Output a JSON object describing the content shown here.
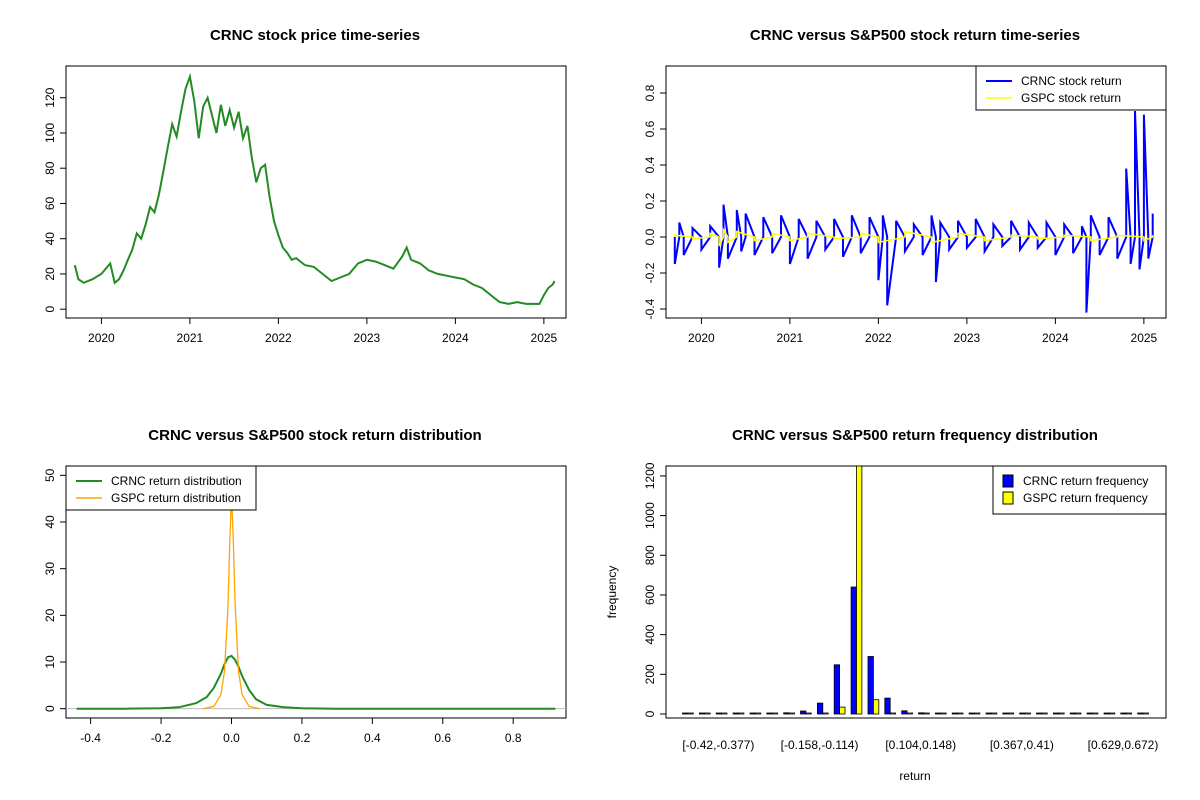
{
  "chart_data": [
    {
      "type": "line",
      "title": "CRNC stock price time-series",
      "xlabel": "",
      "ylabel": "",
      "xlim": [
        2019.6,
        2025.25
      ],
      "ylim": [
        -5,
        138
      ],
      "xticks": [
        2020,
        2021,
        2022,
        2023,
        2024,
        2025
      ],
      "yticks": [
        0,
        20,
        40,
        60,
        80,
        100,
        120
      ],
      "series": [
        {
          "name": "CRNC price",
          "color": "#228B22",
          "x": [
            2019.7,
            2019.74,
            2019.8,
            2019.9,
            2020.0,
            2020.1,
            2020.15,
            2020.2,
            2020.25,
            2020.3,
            2020.35,
            2020.4,
            2020.45,
            2020.5,
            2020.55,
            2020.6,
            2020.65,
            2020.7,
            2020.75,
            2020.8,
            2020.85,
            2020.9,
            2020.95,
            2021.0,
            2021.05,
            2021.1,
            2021.15,
            2021.2,
            2021.25,
            2021.3,
            2021.35,
            2021.4,
            2021.45,
            2021.5,
            2021.55,
            2021.6,
            2021.65,
            2021.7,
            2021.75,
            2021.8,
            2021.85,
            2021.9,
            2021.95,
            2022.0,
            2022.05,
            2022.1,
            2022.15,
            2022.2,
            2022.3,
            2022.4,
            2022.5,
            2022.6,
            2022.7,
            2022.8,
            2022.9,
            2023.0,
            2023.1,
            2023.2,
            2023.3,
            2023.4,
            2023.45,
            2023.5,
            2023.6,
            2023.7,
            2023.8,
            2023.9,
            2024.0,
            2024.1,
            2024.2,
            2024.3,
            2024.4,
            2024.5,
            2024.6,
            2024.7,
            2024.8,
            2024.9,
            2024.95,
            2025.0,
            2025.05,
            2025.1,
            2025.12
          ],
          "values": [
            25,
            17,
            15,
            17,
            20,
            26,
            15,
            17,
            22,
            28,
            34,
            43,
            40,
            48,
            58,
            55,
            65,
            78,
            92,
            105,
            98,
            112,
            125,
            132,
            118,
            97,
            115,
            120,
            110,
            100,
            116,
            104,
            113,
            103,
            112,
            97,
            104,
            86,
            72,
            80,
            82,
            64,
            50,
            42,
            35,
            32,
            28,
            29,
            25,
            24,
            20,
            16,
            18,
            20,
            26,
            28,
            27,
            25,
            23,
            30,
            35,
            28,
            26,
            22,
            20,
            19,
            18,
            17,
            14,
            12,
            8,
            4,
            3,
            4,
            3,
            3,
            3,
            8,
            12,
            14,
            16
          ]
        }
      ]
    },
    {
      "type": "line",
      "title": "CRNC versus S&P500 stock return time-series",
      "xlabel": "",
      "ylabel": "",
      "xlim": [
        2019.6,
        2025.25
      ],
      "ylim": [
        -0.45,
        0.95
      ],
      "xticks": [
        2020,
        2021,
        2022,
        2023,
        2024,
        2025
      ],
      "yticks": [
        -0.4,
        -0.2,
        0.0,
        0.2,
        0.4,
        0.6,
        0.8
      ],
      "legend": {
        "position": "top-right",
        "entries": [
          "CRNC stock return",
          "GSPC stock return"
        ]
      },
      "series": [
        {
          "name": "CRNC stock return",
          "color": "#0000FF",
          "x": [
            2019.7,
            2019.75,
            2019.8,
            2019.9,
            2020.0,
            2020.1,
            2020.2,
            2020.25,
            2020.3,
            2020.4,
            2020.45,
            2020.5,
            2020.6,
            2020.7,
            2020.8,
            2020.9,
            2021.0,
            2021.1,
            2021.2,
            2021.3,
            2021.4,
            2021.5,
            2021.6,
            2021.7,
            2021.8,
            2021.9,
            2022.0,
            2022.05,
            2022.1,
            2022.2,
            2022.3,
            2022.4,
            2022.5,
            2022.6,
            2022.65,
            2022.7,
            2022.8,
            2022.9,
            2023.0,
            2023.1,
            2023.2,
            2023.3,
            2023.4,
            2023.5,
            2023.6,
            2023.7,
            2023.8,
            2023.9,
            2024.0,
            2024.1,
            2024.2,
            2024.3,
            2024.35,
            2024.4,
            2024.5,
            2024.6,
            2024.7,
            2024.8,
            2024.85,
            2024.9,
            2024.95,
            2025.0,
            2025.05,
            2025.1
          ],
          "values": [
            -0.15,
            0.08,
            -0.1,
            0.05,
            -0.07,
            0.06,
            -0.17,
            0.18,
            -0.12,
            0.15,
            -0.08,
            0.13,
            -0.1,
            0.11,
            -0.09,
            0.12,
            -0.15,
            0.1,
            -0.12,
            0.09,
            -0.07,
            0.1,
            -0.11,
            0.12,
            -0.09,
            0.11,
            -0.24,
            0.12,
            -0.38,
            0.09,
            -0.08,
            0.07,
            -0.1,
            0.12,
            -0.25,
            0.08,
            -0.07,
            0.09,
            -0.06,
            0.1,
            -0.08,
            0.07,
            -0.05,
            0.09,
            -0.07,
            0.08,
            -0.06,
            0.08,
            -0.1,
            0.07,
            -0.09,
            0.06,
            -0.42,
            0.12,
            -0.1,
            0.11,
            -0.12,
            0.38,
            -0.15,
            0.7,
            -0.18,
            0.68,
            -0.12,
            0.13
          ]
        },
        {
          "name": "GSPC stock return",
          "color": "#FFFF00",
          "x": [
            2019.7,
            2019.9,
            2020.1,
            2020.2,
            2020.25,
            2020.3,
            2020.4,
            2020.6,
            2020.8,
            2021.0,
            2021.2,
            2021.5,
            2021.8,
            2022.0,
            2022.3,
            2022.6,
            2022.9,
            2023.2,
            2023.5,
            2023.8,
            2024.1,
            2024.4,
            2024.7,
            2025.0,
            2025.1
          ],
          "values": [
            0.01,
            -0.01,
            0.02,
            -0.05,
            0.04,
            -0.03,
            0.03,
            -0.02,
            0.02,
            -0.02,
            0.02,
            -0.01,
            0.02,
            -0.03,
            0.03,
            -0.03,
            0.02,
            -0.02,
            0.01,
            -0.01,
            0.01,
            -0.02,
            0.01,
            -0.02,
            0.01
          ]
        }
      ]
    },
    {
      "type": "line",
      "title": "CRNC versus S&P500 stock return distribution",
      "xlabel": "",
      "ylabel": "",
      "xlim": [
        -0.47,
        0.95
      ],
      "ylim": [
        -2,
        52
      ],
      "xticks": [
        -0.4,
        -0.2,
        0.0,
        0.2,
        0.4,
        0.6,
        0.8
      ],
      "yticks": [
        0,
        10,
        20,
        30,
        40,
        50
      ],
      "legend": {
        "position": "top-left",
        "entries": [
          "CRNC return distribution",
          "GSPC return distribution"
        ]
      },
      "series": [
        {
          "name": "CRNC return distribution",
          "color": "#228B22",
          "x": [
            -0.44,
            -0.3,
            -0.2,
            -0.15,
            -0.1,
            -0.07,
            -0.05,
            -0.03,
            -0.02,
            -0.01,
            0.0,
            0.01,
            0.02,
            0.03,
            0.05,
            0.07,
            0.1,
            0.15,
            0.2,
            0.3,
            0.5,
            0.7,
            0.92
          ],
          "values": [
            0,
            0,
            0.1,
            0.3,
            1.2,
            2.5,
            4.5,
            7.5,
            9.5,
            11,
            11.3,
            10.5,
            9.0,
            7.0,
            4.0,
            2.0,
            0.8,
            0.3,
            0.1,
            0,
            0,
            0,
            0
          ]
        },
        {
          "name": "GSPC return distribution",
          "color": "#FFA500",
          "x": [
            -0.08,
            -0.05,
            -0.03,
            -0.02,
            -0.01,
            -0.005,
            0.0,
            0.005,
            0.01,
            0.02,
            0.03,
            0.05,
            0.08
          ],
          "values": [
            0,
            0.5,
            3,
            8,
            22,
            35,
            46,
            36,
            23,
            8,
            3,
            0.5,
            0
          ]
        }
      ]
    },
    {
      "type": "bar",
      "title": "CRNC versus S&P500 return frequency distribution",
      "xlabel": "return",
      "ylabel": "frequency",
      "ylim": [
        0,
        1250
      ],
      "yticks": [
        0,
        200,
        400,
        600,
        800,
        1000,
        1200
      ],
      "xtick_labels": [
        "[-0.42,-0.377)",
        "[-0.158,-0.114)",
        "[0.104,0.148)",
        "[0.367,0.41)",
        "[0.629,0.672)"
      ],
      "legend": {
        "position": "top-right",
        "entries": [
          "CRNC return frequency",
          "GSPC return frequency"
        ]
      },
      "series": [
        {
          "name": "CRNC return frequency",
          "color": "#0000FF",
          "values": [
            4,
            2,
            1,
            2,
            2,
            3,
            6,
            15,
            55,
            248,
            640,
            290,
            80,
            16,
            6,
            4,
            2,
            1,
            1,
            1,
            1,
            1,
            1,
            1,
            1,
            1,
            1,
            1
          ]
        },
        {
          "name": "GSPC return frequency",
          "color": "#FFFF00",
          "values": [
            0,
            0,
            0,
            0,
            0,
            0,
            0,
            0,
            0,
            35,
            1260,
            72,
            0,
            0,
            0,
            0,
            0,
            0,
            0,
            0,
            0,
            0,
            0,
            0,
            0,
            0,
            0,
            0
          ]
        }
      ]
    }
  ]
}
